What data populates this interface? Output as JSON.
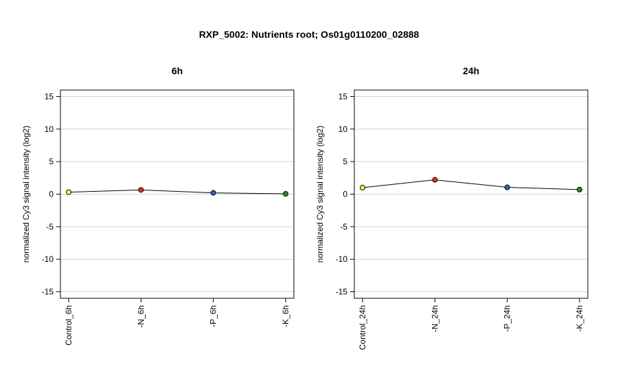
{
  "title": "RXP_5002: Nutrients root; Os01g0110200_02888",
  "colors": {
    "grid": "#d3d3d3",
    "line": "#000000",
    "frame": "#000000"
  },
  "chart_data": [
    {
      "type": "line",
      "title": "6h",
      "ylabel": "normalized Cy3 signal intensity (log2)",
      "categories": [
        "Control_6h",
        "-N_6h",
        "-P_6h",
        "-K_6h"
      ],
      "values": [
        0.3,
        0.65,
        0.2,
        0.05
      ],
      "point_colors": [
        "#ffff4d",
        "#e8302a",
        "#2a5fd6",
        "#2e8b2e"
      ],
      "ylim": [
        -16,
        16
      ],
      "yticks": [
        "15",
        "10",
        "5",
        "0",
        "-5",
        "-10",
        "-15"
      ],
      "ytick_values": [
        15,
        10,
        5,
        0,
        -5,
        -10,
        -15
      ],
      "grid": true
    },
    {
      "type": "line",
      "title": "24h",
      "ylabel": "normalized Cy3 signal intensity (log2)",
      "categories": [
        "Control_24h",
        "-N_24h",
        "-P_24h",
        "-K_24h"
      ],
      "values": [
        1.0,
        2.2,
        1.05,
        0.7
      ],
      "point_colors": [
        "#ffff4d",
        "#e8302a",
        "#2a5fd6",
        "#2e8b2e"
      ],
      "ylim": [
        -16,
        16
      ],
      "yticks": [
        "15",
        "10",
        "5",
        "0",
        "-5",
        "-10",
        "-15"
      ],
      "ytick_values": [
        15,
        10,
        5,
        0,
        -5,
        -10,
        -15
      ],
      "grid": true
    }
  ]
}
